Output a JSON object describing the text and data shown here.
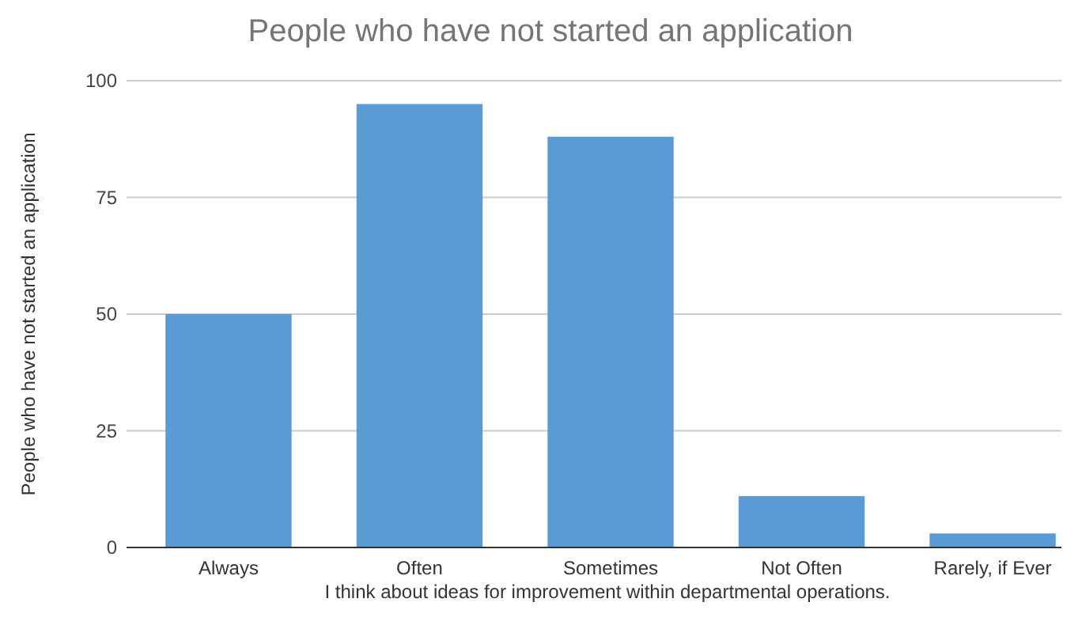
{
  "chart_data": {
    "type": "bar",
    "title": "People who have not started an application",
    "xlabel": "I think about ideas for improvement within departmental operations.",
    "ylabel": "People who have not started an application",
    "categories": [
      "Always",
      "Often",
      "Sometimes",
      "Not Often",
      "Rarely, if Ever"
    ],
    "values": [
      50,
      95,
      88,
      11,
      3
    ],
    "color": "#5b9bd5",
    "ylim": [
      0,
      100
    ],
    "yticks": [
      0,
      25,
      50,
      75,
      100
    ],
    "grid": "y"
  }
}
